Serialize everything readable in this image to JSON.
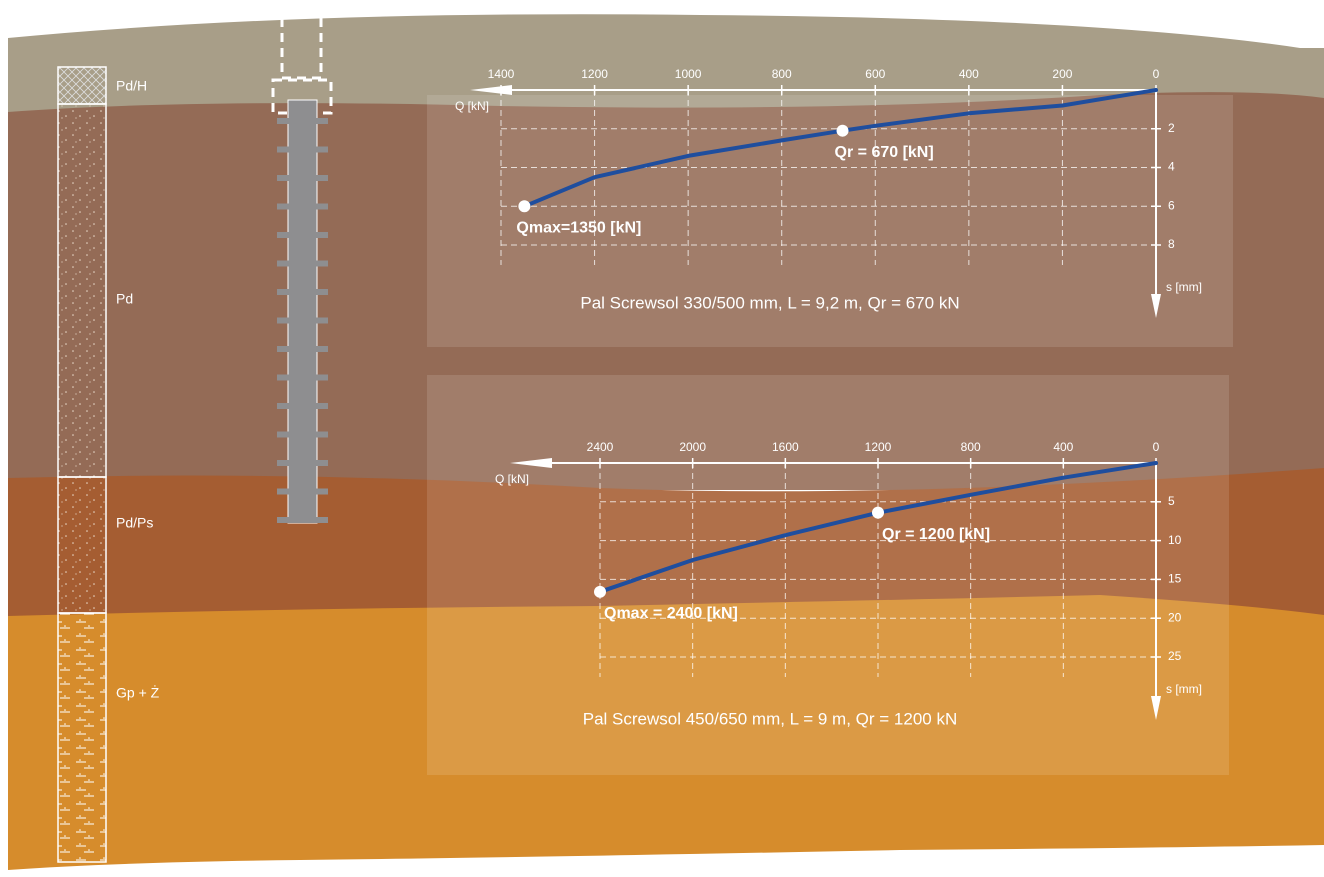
{
  "soil_layers": [
    "Pd/H",
    "Pd",
    "Pd/Ps",
    "Gp + Ż"
  ],
  "chart_data": [
    {
      "type": "line",
      "caption": "Pal Screwsol 330/500 mm, L = 9,2 m, Qr = 670 kN",
      "xlabel": "Q [kN]",
      "ylabel": "s [mm]",
      "color": "#1f4e9e",
      "x": [
        0,
        200,
        400,
        600,
        670,
        800,
        1000,
        1200,
        1350
      ],
      "values": [
        0,
        0.8,
        1.2,
        1.85,
        2.1,
        2.6,
        3.4,
        4.5,
        6
      ],
      "xlim": [
        0,
        1400
      ],
      "xticks": [
        0,
        200,
        400,
        600,
        800,
        1000,
        1200,
        1400
      ],
      "ylim": [
        0,
        8
      ],
      "yticks": [
        2,
        4,
        6,
        8
      ],
      "grid": true,
      "points": [
        {
          "label": "Qr = 670 [kN]",
          "x": 670,
          "y": 2.1
        },
        {
          "label": "Qmax=1350 [kN]",
          "x": 1350,
          "y": 6
        }
      ]
    },
    {
      "type": "line",
      "caption": "Pal Screwsol 450/650 mm, L = 9 m, Qr = 1200 kN",
      "xlabel": "Q [kN]",
      "ylabel": "s [mm]",
      "color": "#1f4e9e",
      "x": [
        0,
        400,
        800,
        1200,
        1600,
        2000,
        2400
      ],
      "values": [
        0,
        1.9,
        4.1,
        6.4,
        9.3,
        12.5,
        16.6
      ],
      "xlim": [
        0,
        2400
      ],
      "xticks": [
        0,
        400,
        800,
        1200,
        1600,
        2000,
        2400
      ],
      "ylim": [
        0,
        25
      ],
      "yticks": [
        5,
        10,
        15,
        20,
        25
      ],
      "grid": true,
      "points": [
        {
          "label": "Qr = 1200 [kN]",
          "x": 1200,
          "y": 6.4
        },
        {
          "label": "Qmax = 2400 [kN]",
          "x": 2400,
          "y": 16.6
        }
      ]
    }
  ]
}
